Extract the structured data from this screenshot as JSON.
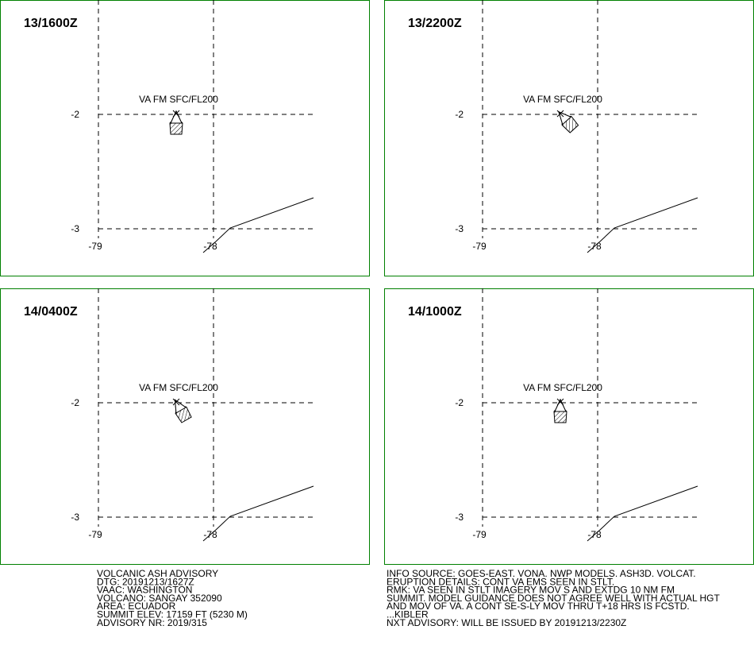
{
  "panels": [
    {
      "time": "13/1600Z",
      "label": "VA FM SFC/FL200",
      "lat_labels": [
        "-2",
        "-3"
      ],
      "lon_labels": [
        "-79",
        "-78"
      ]
    },
    {
      "time": "13/2200Z",
      "label": "VA FM SFC/FL200",
      "lat_labels": [
        "-2",
        "-3"
      ],
      "lon_labels": [
        "-79",
        "-78"
      ]
    },
    {
      "time": "14/0400Z",
      "label": "VA FM SFC/FL200",
      "lat_labels": [
        "-2",
        "-3"
      ],
      "lon_labels": [
        "-79",
        "-78"
      ]
    },
    {
      "time": "14/1000Z",
      "label": "VA FM SFC/FL200",
      "lat_labels": [
        "-2",
        "-3"
      ],
      "lon_labels": [
        "-79",
        "-78"
      ]
    }
  ],
  "advisory_left": [
    "VOLCANIC ASH ADVISORY",
    "DTG: 20191213/1627Z",
    "VAAC: WASHINGTON",
    "VOLCANO: SANGAY 352090",
    "AREA: ECUADOR",
    "SUMMIT ELEV: 17159 FT (5230 M)",
    "ADVISORY NR: 2019/315"
  ],
  "advisory_right": [
    "INFO SOURCE: GOES-EAST. VONA. NWP MODELS. ASH3D. VOLCAT.",
    "ERUPTION DETAILS: CONT VA EMS SEEN IN STLT.",
    "RMK: VA SEEN IN STLT IMAGERY MOV S AND EXTDG 10 NM FM",
    "SUMMIT. MODEL GUIDANCE DOES NOT AGREE WELL WITH ACTUAL HGT",
    "AND MOV OF VA. A CONT SE-S-LY MOV THRU T+18 HRS IS FCSTD.",
    "...KIBLER",
    "NXT ADVISORY: WILL BE ISSUED BY 20191213/2230Z"
  ]
}
